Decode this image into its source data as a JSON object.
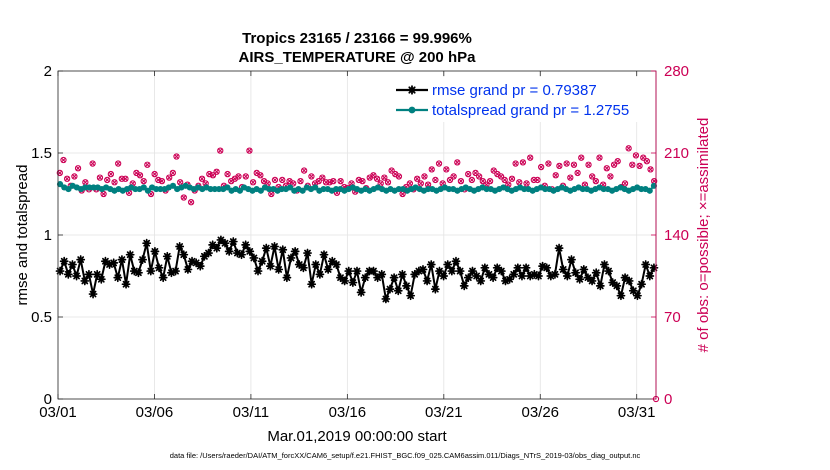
{
  "chart_data": {
    "type": "line",
    "title": "Tropics 23165 / 23166 = 99.996%",
    "subtitle": "AIRS_TEMPERATURE @ 200 hPa",
    "xlabel": "Mar.01,2019 00:00:00 start",
    "ylabel_left": "rmse and totalspread",
    "ylabel_right": "# of obs: o=possible; ×=assimilated",
    "ylim_left": [
      0,
      2
    ],
    "ylim_right": [
      0,
      280
    ],
    "xlim_days": [
      0,
      31
    ],
    "x_ticks": [
      0,
      5,
      10,
      15,
      20,
      25,
      30
    ],
    "x_tick_labels": [
      "03/01",
      "03/06",
      "03/11",
      "03/16",
      "03/21",
      "03/26",
      "03/31"
    ],
    "y_ticks_left": [
      0,
      0.5,
      1,
      1.5,
      2
    ],
    "y_tick_labels_left": [
      "0",
      "0.5",
      "1",
      "1.5",
      "2"
    ],
    "y_ticks_right": [
      0,
      70,
      140,
      210,
      280
    ],
    "y_tick_labels_right": [
      "0",
      "70",
      "140",
      "210",
      "280"
    ],
    "grid": true,
    "legend_position": "top-right",
    "colors": {
      "rmse": "#000000",
      "spread": "#008080",
      "obs": "#cc0055",
      "legend_text": "#0033ee"
    },
    "series": [
      {
        "name": "rmse grand pr = 0.79387",
        "axis": "left",
        "color": "#000000",
        "marker": "star",
        "values": [
          0.78,
          0.84,
          0.76,
          0.82,
          0.75,
          0.85,
          0.72,
          0.76,
          0.64,
          0.76,
          0.73,
          0.84,
          0.82,
          0.83,
          0.74,
          0.85,
          0.7,
          0.88,
          0.78,
          0.77,
          0.85,
          0.95,
          0.78,
          0.9,
          0.8,
          0.74,
          0.87,
          0.77,
          0.78,
          0.93,
          0.88,
          0.79,
          0.84,
          0.83,
          0.81,
          0.87,
          0.89,
          0.94,
          0.92,
          0.97,
          0.95,
          0.9,
          0.96,
          0.89,
          0.88,
          0.94,
          0.9,
          0.86,
          0.78,
          0.84,
          0.92,
          0.81,
          0.93,
          0.79,
          0.91,
          0.74,
          0.86,
          0.9,
          0.82,
          0.8,
          0.89,
          0.7,
          0.82,
          0.76,
          0.88,
          0.79,
          0.84,
          0.82,
          0.74,
          0.72,
          0.78,
          0.71,
          0.78,
          0.65,
          0.74,
          0.78,
          0.78,
          0.74,
          0.76,
          0.61,
          0.67,
          0.74,
          0.66,
          0.76,
          0.69,
          0.63,
          0.76,
          0.78,
          0.79,
          0.72,
          0.82,
          0.67,
          0.78,
          0.75,
          0.82,
          0.78,
          0.84,
          0.78,
          0.69,
          0.74,
          0.78,
          0.75,
          0.72,
          0.8,
          0.76,
          0.74,
          0.8,
          0.78,
          0.72,
          0.73,
          0.76,
          0.8,
          0.75,
          0.8,
          0.75,
          0.76,
          0.75,
          0.81,
          0.8,
          0.75,
          0.76,
          0.92,
          0.79,
          0.75,
          0.85,
          0.77,
          0.73,
          0.79,
          0.74,
          0.72,
          0.77,
          0.69,
          0.82,
          0.78,
          0.71,
          0.69,
          0.63,
          0.74,
          0.72,
          0.66,
          0.63,
          0.7,
          0.82,
          0.75,
          0.8
        ]
      },
      {
        "name": "totalspread grand pr = 1.2755",
        "axis": "left",
        "color": "#008080",
        "marker": "circle",
        "values": [
          1.31,
          1.29,
          1.28,
          1.3,
          1.29,
          1.28,
          1.29,
          1.29,
          1.29,
          1.29,
          1.28,
          1.29,
          1.28,
          1.27,
          1.28,
          1.27,
          1.28,
          1.29,
          1.28,
          1.28,
          1.29,
          1.27,
          1.29,
          1.28,
          1.28,
          1.28,
          1.29,
          1.3,
          1.28,
          1.29,
          1.3,
          1.29,
          1.28,
          1.29,
          1.28,
          1.29,
          1.28,
          1.28,
          1.28,
          1.28,
          1.29,
          1.27,
          1.28,
          1.27,
          1.29,
          1.28,
          1.27,
          1.28,
          1.27,
          1.29,
          1.28,
          1.28,
          1.27,
          1.28,
          1.28,
          1.29,
          1.27,
          1.28,
          1.27,
          1.29,
          1.28,
          1.29,
          1.27,
          1.28,
          1.28,
          1.27,
          1.28,
          1.28,
          1.27,
          1.28,
          1.29,
          1.28,
          1.27,
          1.28,
          1.27,
          1.28,
          1.29,
          1.28,
          1.27,
          1.28,
          1.27,
          1.28,
          1.28,
          1.27,
          1.28,
          1.29,
          1.28,
          1.27,
          1.28,
          1.28,
          1.27,
          1.28,
          1.29,
          1.28,
          1.28,
          1.27,
          1.28,
          1.29,
          1.28,
          1.27,
          1.28,
          1.29,
          1.28,
          1.28,
          1.27,
          1.28,
          1.29,
          1.28,
          1.27,
          1.28,
          1.29,
          1.28,
          1.28,
          1.27,
          1.28,
          1.29,
          1.28,
          1.28,
          1.27,
          1.28,
          1.29,
          1.28,
          1.27,
          1.28,
          1.29,
          1.28,
          1.28,
          1.27,
          1.28,
          1.29,
          1.28,
          1.28,
          1.27,
          1.28,
          1.29,
          1.28,
          1.27,
          1.28,
          1.29,
          1.28,
          1.28,
          1.27,
          1.3
        ]
      },
      {
        "name": "# of obs possible",
        "axis": "right",
        "color": "#cc0055",
        "marker": "o",
        "values": [
          193,
          204,
          188,
          182,
          190,
          197,
          178,
          185,
          179,
          201,
          179,
          189,
          175,
          187,
          192,
          185,
          201,
          188,
          188,
          176,
          184,
          193,
          191,
          186,
          200,
          175,
          192,
          187,
          186,
          178,
          189,
          193,
          207,
          185,
          172,
          183,
          168,
          178,
          182,
          188,
          184,
          192,
          191,
          194,
          212,
          182,
          192,
          186,
          188,
          190,
          181,
          190,
          212,
          185,
          193,
          191,
          186,
          184,
          175,
          187,
          181,
          187,
          182,
          186,
          184,
          178,
          186,
          195,
          182,
          190,
          184,
          186,
          189,
          185,
          185,
          186,
          176,
          186,
          181,
          180,
          184,
          177,
          187,
          186,
          180,
          189,
          191,
          188,
          184,
          189,
          185,
          195,
          192,
          190,
          175,
          181,
          184,
          179,
          188,
          184,
          190,
          183,
          196,
          187,
          201,
          184,
          196,
          187,
          190,
          202,
          186,
          179,
          192,
          187,
          193,
          190,
          186,
          183,
          186,
          195,
          192,
          190,
          187,
          183,
          188,
          201,
          185,
          202,
          184,
          206,
          187,
          187,
          198,
          182,
          201,
          179,
          191,
          199,
          182,
          201,
          189,
          200,
          193,
          206,
          183,
          200,
          190,
          186,
          206,
          183,
          197,
          190,
          200,
          203,
          181,
          184,
          214,
          200,
          208,
          199,
          206,
          203,
          196,
          186
        ]
      },
      {
        "name": "# of obs assimilated",
        "axis": "right",
        "color": "#cc0055",
        "marker": "x",
        "note": "plotted on the same points as the possible counts (overlapping markers)"
      }
    ]
  },
  "footnote": "data file: /Users/raeder/DAI/ATM_forcXX/CAM6_setup/f.e21.FHIST_BGC.f09_025.CAM6assim.011/Diags_NTrS_2019-03/obs_diag_output.nc"
}
